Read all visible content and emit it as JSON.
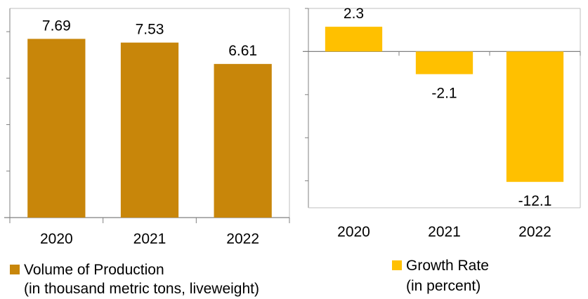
{
  "chart_data": [
    {
      "type": "bar",
      "categories": [
        "2020",
        "2021",
        "2022"
      ],
      "values": [
        7.69,
        7.53,
        6.61
      ],
      "data_labels": [
        "7.69",
        "7.53",
        "6.61"
      ],
      "ylim": [
        0,
        9
      ],
      "color": "#C8860A",
      "legend": {
        "name": "Volume of Production",
        "sub": "(in thousand metric tons, liveweight)",
        "placement": "bottom"
      }
    },
    {
      "type": "bar",
      "categories": [
        "2020",
        "2021",
        "2022"
      ],
      "values": [
        2.3,
        -2.1,
        -12.1
      ],
      "data_labels": [
        "2.3",
        "-2.1",
        "-12.1"
      ],
      "ylim": [
        -14.5,
        4
      ],
      "color": "#FFC000",
      "legend": {
        "name": "Growth Rate",
        "sub": "(in percent)",
        "placement": "bottom"
      }
    }
  ]
}
